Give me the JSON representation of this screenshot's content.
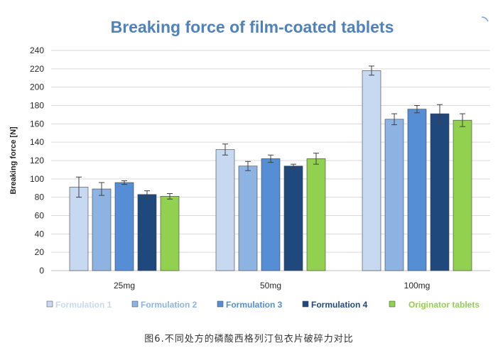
{
  "chart_data": {
    "type": "bar",
    "title": "Breaking force of film-coated tablets",
    "ylabel": "Breaking force [N]",
    "xlabel": "",
    "categories": [
      "25mg",
      "50mg",
      "100mg"
    ],
    "ylim": [
      0,
      240
    ],
    "yticks": [
      0,
      20,
      40,
      60,
      80,
      100,
      120,
      140,
      160,
      180,
      200,
      220,
      240
    ],
    "grid": true,
    "legend_position": "bottom",
    "series": [
      {
        "name": "Formulation 1",
        "color": "#c6d9f1",
        "values": [
          91,
          132,
          218
        ],
        "errors": [
          11,
          6,
          5
        ]
      },
      {
        "name": "Formulation 2",
        "color": "#8db3e2",
        "values": [
          89,
          114,
          165
        ],
        "errors": [
          7,
          5,
          6
        ]
      },
      {
        "name": "Formulation 3",
        "color": "#558ed5",
        "values": [
          96,
          122,
          176
        ],
        "errors": [
          2,
          4,
          4
        ]
      },
      {
        "name": "Formulation 4",
        "color": "#1f497d",
        "values": [
          83,
          114,
          171
        ],
        "errors": [
          4,
          2,
          10
        ]
      },
      {
        "name": "Originator tablets",
        "color": "#92d050",
        "values": [
          81,
          122,
          164
        ],
        "errors": [
          3,
          6,
          7
        ]
      }
    ]
  },
  "caption": "图6.不同处方的磷酸西格列汀包衣片破碎力对比",
  "colors": {
    "title": "#4f81bd",
    "axis_text": "#262626",
    "gridline": "#d9d9d9",
    "bar_border": "#404040"
  }
}
